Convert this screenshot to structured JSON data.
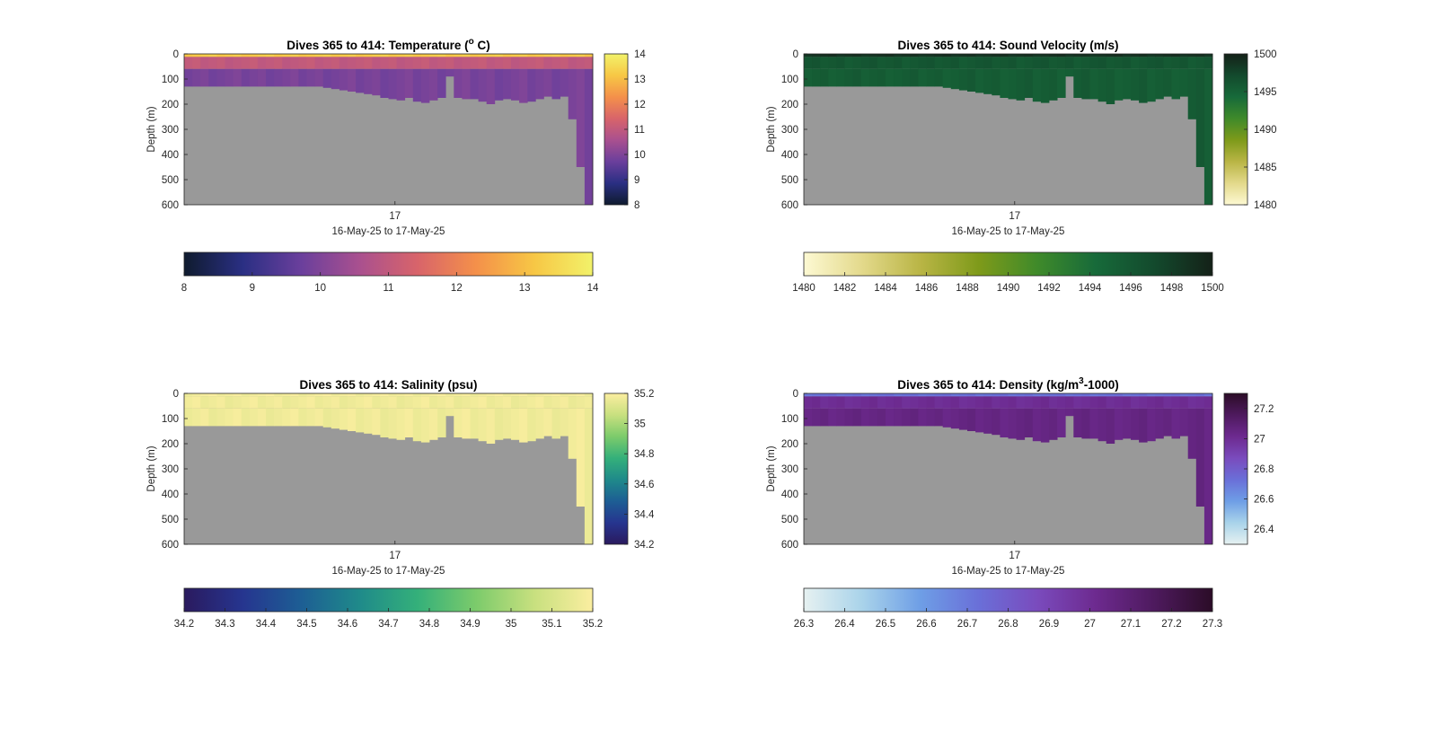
{
  "figure": {
    "background": "#ffffff",
    "missing_color": "#999999"
  },
  "chart_data": [
    {
      "type": "heatmap",
      "title": "Dives 365 to 414: Temperature (",
      "title_sup": "o",
      "title_end": " C)",
      "xlabel": "16-May-25 to 17-May-25",
      "ylabel": "Depth (m)",
      "x_ticks": [
        "17"
      ],
      "y_ticks": [
        "0",
        "100",
        "200",
        "300",
        "400",
        "500",
        "600"
      ],
      "ylim": [
        0,
        600
      ],
      "y_reversed": true,
      "colormap": [
        "#0f1b2e",
        "#2a2f83",
        "#6a3f9c",
        "#a9508f",
        "#d8646a",
        "#f4904a",
        "#f7c745",
        "#f2f26a"
      ],
      "clim": [
        8,
        14
      ],
      "side_colorbar_ticks": [
        "14",
        "13",
        "12",
        "11",
        "10",
        "9",
        "8"
      ],
      "bottom_colorbar_ticks": [
        "8",
        "9",
        "10",
        "11",
        "12",
        "13",
        "14"
      ],
      "surface_value": 13.2,
      "mixed_value": 11.0,
      "deep_value": 9.9,
      "dive_count": 50,
      "bottom_depth_m": [
        130,
        130,
        130,
        130,
        130,
        130,
        130,
        130,
        130,
        130,
        130,
        130,
        130,
        130,
        130,
        130,
        130,
        135,
        140,
        145,
        150,
        155,
        160,
        165,
        175,
        180,
        185,
        175,
        190,
        195,
        185,
        175,
        90,
        175,
        180,
        180,
        190,
        200,
        185,
        180,
        185,
        195,
        190,
        180,
        170,
        180,
        170,
        260,
        450,
        600
      ]
    },
    {
      "type": "heatmap",
      "title": "Dives 365 to 414: Sound Velocity (m/s)",
      "xlabel": "16-May-25 to 17-May-25",
      "ylabel": "Depth (m)",
      "x_ticks": [
        "17"
      ],
      "y_ticks": [
        "0",
        "100",
        "200",
        "300",
        "400",
        "500",
        "600"
      ],
      "ylim": [
        0,
        600
      ],
      "y_reversed": true,
      "colormap": [
        "#fdf9d3",
        "#e3d98b",
        "#b9b545",
        "#7e9a1a",
        "#3f8a2a",
        "#176a3a",
        "#134a2d",
        "#142118"
      ],
      "clim": [
        1480,
        1500
      ],
      "side_colorbar_ticks": [
        "1500",
        "1495",
        "1490",
        "1485",
        "1480"
      ],
      "bottom_colorbar_ticks": [
        "1480",
        "1482",
        "1484",
        "1486",
        "1488",
        "1490",
        "1492",
        "1494",
        "1496",
        "1498",
        "1500"
      ],
      "surface_value": 1498.8,
      "mixed_value": 1496.0,
      "deep_value": 1495.5,
      "dive_count": 50,
      "bottom_depth_m": [
        130,
        130,
        130,
        130,
        130,
        130,
        130,
        130,
        130,
        130,
        130,
        130,
        130,
        130,
        130,
        130,
        130,
        135,
        140,
        145,
        150,
        155,
        160,
        165,
        175,
        180,
        185,
        175,
        190,
        195,
        185,
        175,
        90,
        175,
        180,
        180,
        190,
        200,
        185,
        180,
        185,
        195,
        190,
        180,
        170,
        180,
        170,
        260,
        450,
        600
      ]
    },
    {
      "type": "heatmap",
      "title": "Dives 365 to 414: Salinity (psu)",
      "xlabel": "16-May-25 to 17-May-25",
      "ylabel": "Depth (m)",
      "x_ticks": [
        "17"
      ],
      "y_ticks": [
        "0",
        "100",
        "200",
        "300",
        "400",
        "500",
        "600"
      ],
      "ylim": [
        0,
        600
      ],
      "y_reversed": true,
      "colormap": [
        "#2a1a5e",
        "#26358f",
        "#1d5e94",
        "#1f8a8a",
        "#34b07a",
        "#7ccb6b",
        "#c8e07f",
        "#fbeea0"
      ],
      "clim": [
        34.2,
        35.2
      ],
      "side_colorbar_ticks": [
        "35.2",
        "35",
        "34.8",
        "34.6",
        "34.4",
        "34.2"
      ],
      "bottom_colorbar_ticks": [
        "34.2",
        "34.3",
        "34.4",
        "34.5",
        "34.6",
        "34.7",
        "34.8",
        "34.9",
        "35",
        "35.1",
        "35.2"
      ],
      "surface_value": 35.18,
      "mixed_value": 35.17,
      "deep_value": 35.17,
      "dive_count": 50,
      "bottom_depth_m": [
        130,
        130,
        130,
        130,
        130,
        130,
        130,
        130,
        130,
        130,
        130,
        130,
        130,
        130,
        130,
        130,
        130,
        135,
        140,
        145,
        150,
        155,
        160,
        165,
        175,
        180,
        185,
        175,
        190,
        195,
        185,
        175,
        90,
        175,
        180,
        180,
        190,
        200,
        185,
        180,
        185,
        195,
        190,
        180,
        170,
        180,
        170,
        260,
        450,
        600
      ]
    },
    {
      "type": "heatmap",
      "title": "Dives 365 to 414: Density (kg/m",
      "title_sup": "3",
      "title_end": "-1000)",
      "xlabel": "16-May-25 to 17-May-25",
      "ylabel": "Depth (m)",
      "x_ticks": [
        "17"
      ],
      "y_ticks": [
        "0",
        "100",
        "200",
        "300",
        "400",
        "500",
        "600"
      ],
      "ylim": [
        0,
        600
      ],
      "y_reversed": true,
      "colormap": [
        "#e6f1f1",
        "#a9d3ea",
        "#6e9ee6",
        "#6a6fd8",
        "#7a4bbd",
        "#6d2a8f",
        "#4e1a5e",
        "#2b0c27"
      ],
      "clim": [
        26.3,
        27.3
      ],
      "side_colorbar_ticks": [
        "27.2",
        "27",
        "26.8",
        "26.6",
        "26.4"
      ],
      "bottom_colorbar_ticks": [
        "26.3",
        "26.4",
        "26.5",
        "26.6",
        "26.7",
        "26.8",
        "26.9",
        "27",
        "27.1",
        "27.2",
        "27.3"
      ],
      "surface_value": 26.72,
      "mixed_value": 27.0,
      "deep_value": 27.05,
      "dive_count": 50,
      "bottom_depth_m": [
        130,
        130,
        130,
        130,
        130,
        130,
        130,
        130,
        130,
        130,
        130,
        130,
        130,
        130,
        130,
        130,
        130,
        135,
        140,
        145,
        150,
        155,
        160,
        165,
        175,
        180,
        185,
        175,
        190,
        195,
        185,
        175,
        90,
        175,
        180,
        180,
        190,
        200,
        185,
        180,
        185,
        195,
        190,
        180,
        170,
        180,
        170,
        260,
        450,
        600
      ]
    }
  ]
}
